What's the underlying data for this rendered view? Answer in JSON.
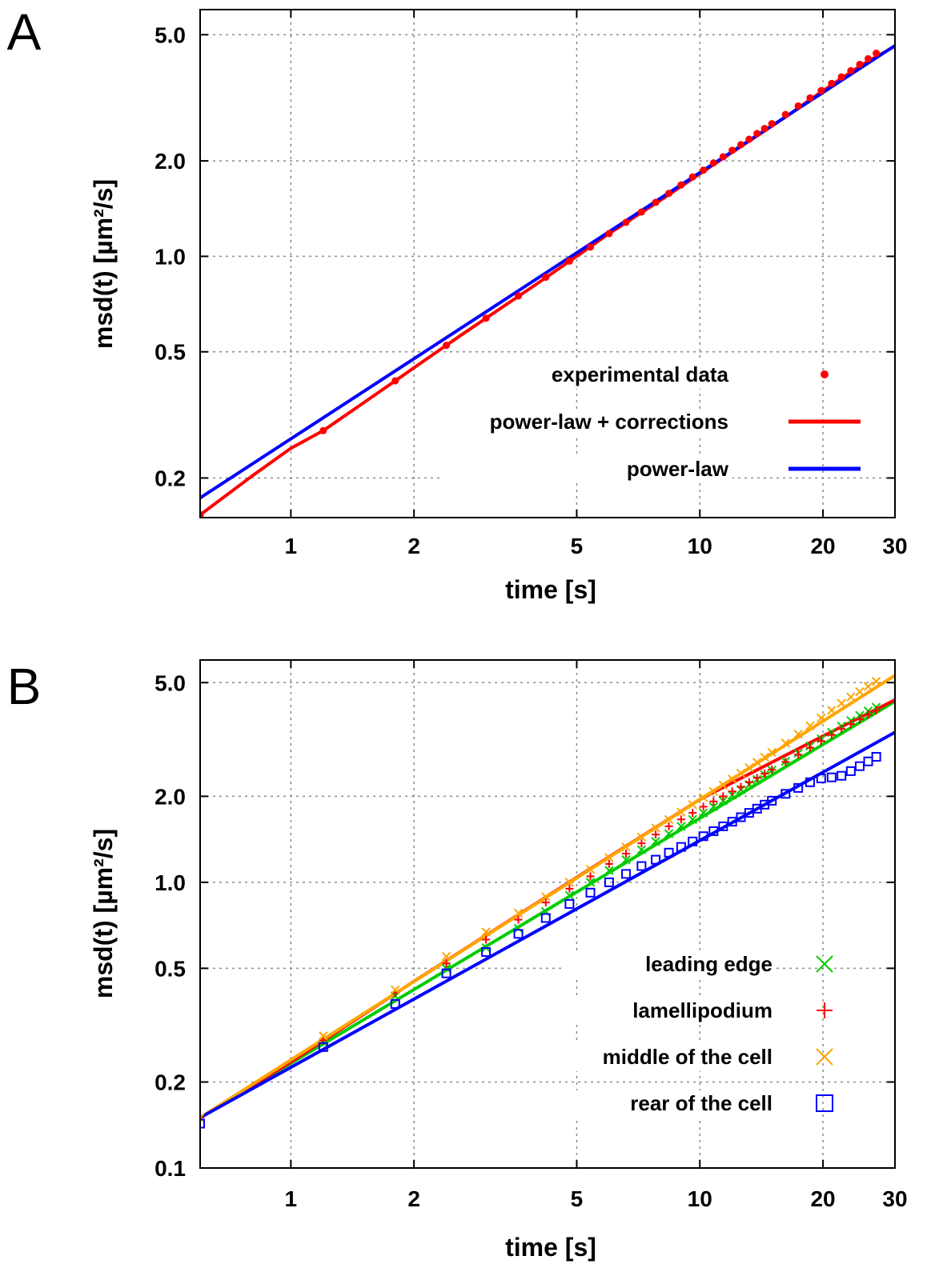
{
  "chart_data": [
    {
      "panel_label": "A",
      "type": "line",
      "log_x": true,
      "log_y": true,
      "xlim": [
        0.6,
        30
      ],
      "ylim": [
        0.15,
        6.0
      ],
      "xticks": [
        1,
        2,
        5,
        10,
        20,
        30
      ],
      "xtick_labels": [
        "1",
        "2",
        "5",
        "10",
        "20",
        "30"
      ],
      "yticks": [
        0.2,
        0.5,
        1.0,
        2.0,
        5.0
      ],
      "ytick_labels": [
        "0.2",
        "0.5",
        "1.0",
        "2.0",
        "5.0"
      ],
      "xlabel": "time [s]",
      "ylabel": "msd(t) [µm²/s]",
      "grid": true,
      "legend_position": "bottom-right",
      "series": [
        {
          "name": "experimental data",
          "kind": "points",
          "marker": "dot",
          "color": "#ff0000",
          "x": [
            0.6,
            1.2,
            1.8,
            2.4,
            3.0,
            3.6,
            4.2,
            4.8,
            5.4,
            6.0,
            6.6,
            7.2,
            7.8,
            8.4,
            9.0,
            9.6,
            10.2,
            10.8,
            11.4,
            12.0,
            12.6,
            13.2,
            13.8,
            14.4,
            15.0,
            16.2,
            17.4,
            18.6,
            19.8,
            21.0,
            22.2,
            23.4,
            24.6,
            25.8,
            27.0
          ],
          "y": [
            0.153,
            0.282,
            0.405,
            0.524,
            0.638,
            0.75,
            0.859,
            0.966,
            1.07,
            1.18,
            1.28,
            1.38,
            1.48,
            1.58,
            1.68,
            1.78,
            1.87,
            1.97,
            2.06,
            2.16,
            2.25,
            2.34,
            2.44,
            2.53,
            2.62,
            2.8,
            2.98,
            3.16,
            3.33,
            3.51,
            3.68,
            3.85,
            4.03,
            4.2,
            4.37
          ]
        },
        {
          "name": "power-law + corrections",
          "kind": "line",
          "color": "#ff0000",
          "x": [
            0.6,
            0.8,
            1.0,
            1.2,
            1.5,
            1.8,
            2.2,
            2.6,
            3.0,
            3.5,
            4.0,
            5.0,
            6.0,
            8.0,
            10.0,
            13.0,
            16.0,
            20.0,
            25.0,
            30.0
          ],
          "y": [
            0.153,
            0.202,
            0.248,
            0.282,
            0.344,
            0.405,
            0.485,
            0.563,
            0.638,
            0.73,
            0.82,
            1.0,
            1.18,
            1.5,
            1.82,
            2.28,
            2.72,
            3.33,
            4.03,
            4.6
          ]
        },
        {
          "name": "power-law",
          "kind": "line",
          "color": "#0000ff",
          "x": [
            0.6,
            30
          ],
          "y": [
            0.173,
            4.62
          ]
        }
      ]
    },
    {
      "panel_label": "B",
      "type": "line",
      "log_x": true,
      "log_y": true,
      "xlim": [
        0.6,
        30
      ],
      "ylim": [
        0.1,
        6.0
      ],
      "xticks": [
        1,
        2,
        5,
        10,
        20,
        30
      ],
      "xtick_labels": [
        "1",
        "2",
        "5",
        "10",
        "20",
        "30"
      ],
      "yticks": [
        0.1,
        0.2,
        0.5,
        1.0,
        2.0,
        5.0
      ],
      "ytick_labels": [
        "0.1",
        "0.2",
        "0.5",
        "1.0",
        "2.0",
        "5.0"
      ],
      "xlabel": "time [s]",
      "ylabel": "msd(t) [µm²/s]",
      "grid": true,
      "legend_position": "bottom-right",
      "series": [
        {
          "name": "leading edge",
          "kind": "points",
          "marker": "x",
          "color": "#00cc00",
          "x": [
            0.6,
            1.2,
            1.8,
            2.4,
            3.0,
            3.6,
            4.2,
            4.8,
            5.4,
            6.0,
            6.6,
            7.2,
            7.8,
            8.4,
            9.0,
            9.6,
            10.2,
            10.8,
            11.4,
            12.0,
            12.6,
            13.2,
            13.8,
            14.4,
            15.0,
            16.2,
            17.4,
            18.6,
            19.8,
            21.0,
            22.2,
            23.4,
            24.6,
            25.8,
            27.0
          ],
          "y": [
            0.15,
            0.275,
            0.4,
            0.5,
            0.59,
            0.69,
            0.79,
            0.9,
            1.0,
            1.1,
            1.2,
            1.3,
            1.39,
            1.48,
            1.57,
            1.66,
            1.75,
            1.84,
            1.93,
            2.02,
            2.11,
            2.2,
            2.29,
            2.38,
            2.47,
            2.65,
            2.83,
            3.0,
            3.18,
            3.35,
            3.52,
            3.68,
            3.84,
            3.98,
            4.1
          ]
        },
        {
          "name": "lamellipodium",
          "kind": "points",
          "marker": "plus",
          "color": "#ff0000",
          "x": [
            0.6,
            1.2,
            1.8,
            2.4,
            3.0,
            3.6,
            4.2,
            4.8,
            5.4,
            6.0,
            6.6,
            7.2,
            7.8,
            8.4,
            9.0,
            9.6,
            10.2,
            10.8,
            11.4,
            12.0,
            12.6,
            13.2,
            13.8,
            14.4,
            15.0,
            16.2,
            17.4,
            18.6,
            19.8,
            21.0,
            22.2,
            23.4,
            24.6,
            25.8,
            27.0
          ],
          "y": [
            0.15,
            0.28,
            0.41,
            0.52,
            0.63,
            0.74,
            0.85,
            0.95,
            1.05,
            1.16,
            1.26,
            1.37,
            1.47,
            1.57,
            1.66,
            1.75,
            1.84,
            1.92,
            2.0,
            2.08,
            2.16,
            2.24,
            2.32,
            2.4,
            2.48,
            2.64,
            2.8,
            2.96,
            3.12,
            3.28,
            3.44,
            3.58,
            3.72,
            3.86,
            4.0
          ]
        },
        {
          "name": "middle of the cell",
          "kind": "points",
          "marker": "x",
          "color": "#ffa500",
          "x": [
            0.6,
            1.2,
            1.8,
            2.4,
            3.0,
            3.6,
            4.2,
            4.8,
            5.4,
            6.0,
            6.6,
            7.2,
            7.8,
            8.4,
            9.0,
            9.6,
            10.2,
            10.8,
            11.4,
            12.0,
            12.6,
            13.2,
            13.8,
            14.4,
            15.0,
            16.2,
            17.4,
            18.6,
            19.8,
            21.0,
            22.2,
            23.4,
            24.6,
            25.8,
            27.0
          ],
          "y": [
            0.15,
            0.29,
            0.42,
            0.55,
            0.67,
            0.78,
            0.89,
            1.0,
            1.11,
            1.22,
            1.33,
            1.44,
            1.55,
            1.66,
            1.76,
            1.87,
            1.98,
            2.08,
            2.19,
            2.3,
            2.41,
            2.52,
            2.63,
            2.74,
            2.85,
            3.07,
            3.3,
            3.53,
            3.76,
            4.0,
            4.23,
            4.45,
            4.65,
            4.85,
            5.05
          ]
        },
        {
          "name": "rear of the cell",
          "kind": "points",
          "marker": "square",
          "color": "#0000ff",
          "x": [
            0.6,
            1.2,
            1.8,
            2.4,
            3.0,
            3.6,
            4.2,
            4.8,
            5.4,
            6.0,
            6.6,
            7.2,
            7.8,
            8.4,
            9.0,
            9.6,
            10.2,
            10.8,
            11.4,
            12.0,
            12.6,
            13.2,
            13.8,
            14.4,
            15.0,
            16.2,
            17.4,
            18.6,
            19.8,
            21.0,
            22.2,
            23.4,
            24.6,
            25.8,
            27.0
          ],
          "y": [
            0.143,
            0.265,
            0.375,
            0.48,
            0.57,
            0.66,
            0.75,
            0.84,
            0.92,
            1.0,
            1.07,
            1.14,
            1.2,
            1.27,
            1.33,
            1.39,
            1.45,
            1.51,
            1.57,
            1.63,
            1.69,
            1.75,
            1.81,
            1.87,
            1.93,
            2.04,
            2.14,
            2.24,
            2.31,
            2.33,
            2.36,
            2.45,
            2.55,
            2.65,
            2.75
          ]
        },
        {
          "name": "",
          "kind": "line",
          "color": "#00cc00",
          "x": [
            0.6,
            30
          ],
          "y": [
            0.15,
            4.3
          ]
        },
        {
          "name": "",
          "kind": "line",
          "color": "#ff0000",
          "x": [
            0.6,
            1.0,
            2.0,
            5.0,
            10.0,
            20.0,
            30.0
          ],
          "y": [
            0.15,
            0.235,
            0.45,
            1.04,
            1.95,
            3.25,
            4.35
          ]
        },
        {
          "name": "",
          "kind": "line",
          "color": "#ffa500",
          "x": [
            0.6,
            30
          ],
          "y": [
            0.15,
            5.3
          ]
        },
        {
          "name": "",
          "kind": "line",
          "color": "#0000ff",
          "x": [
            0.6,
            30
          ],
          "y": [
            0.15,
            3.35
          ]
        }
      ]
    }
  ]
}
